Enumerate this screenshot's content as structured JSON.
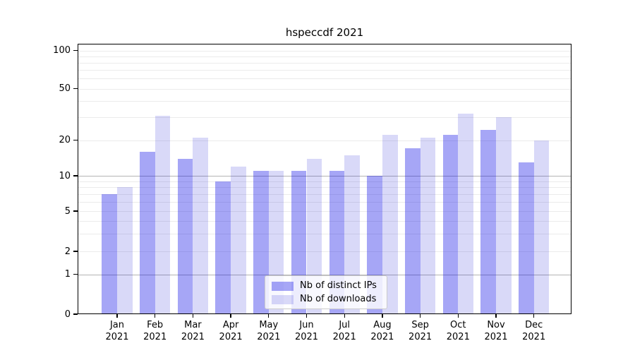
{
  "chart_data": {
    "type": "bar",
    "title": "hspeccdf 2021",
    "categories": [
      "Jan 2021",
      "Feb 2021",
      "Mar 2021",
      "Apr 2021",
      "May 2021",
      "Jun 2021",
      "Jul 2021",
      "Aug 2021",
      "Sep 2021",
      "Oct 2021",
      "Nov 2021",
      "Dec 2021"
    ],
    "x_tick_months": [
      "Jan",
      "Feb",
      "Mar",
      "Apr",
      "May",
      "Jun",
      "Jul",
      "Aug",
      "Sep",
      "Oct",
      "Nov",
      "Dec"
    ],
    "x_tick_year": "2021",
    "series": [
      {
        "name": "Nb of distinct IPs",
        "color": "rgba(0,0,230,0.35)",
        "color_hex": "#a6a6f6",
        "values": [
          7,
          16,
          14,
          9,
          11,
          11,
          11,
          10,
          17,
          22,
          24,
          13
        ]
      },
      {
        "name": "Nb of downloads",
        "color": "rgba(0,0,210,0.15)",
        "color_hex": "#d9d9f7",
        "values": [
          8,
          31,
          21,
          12,
          11,
          14,
          15,
          22,
          21,
          32,
          30,
          20
        ]
      }
    ],
    "yscale": "symlog (linear 0-1, log above 1)",
    "y_tick_labels": [
      "100",
      "50",
      "20",
      "10",
      "5",
      "2",
      "1",
      "0"
    ],
    "y_tick_values": [
      100,
      50,
      20,
      10,
      5,
      2,
      1,
      0
    ],
    "ylim": [
      0,
      113
    ],
    "grid": "both (major dark at 1,10; light minors)",
    "legend_position": "lower center"
  },
  "colors": {
    "major_grid": "#b4b4b4",
    "minor_grid": "#ebebeb",
    "axis": "#000000",
    "legend_border": "#cbcbcb"
  }
}
